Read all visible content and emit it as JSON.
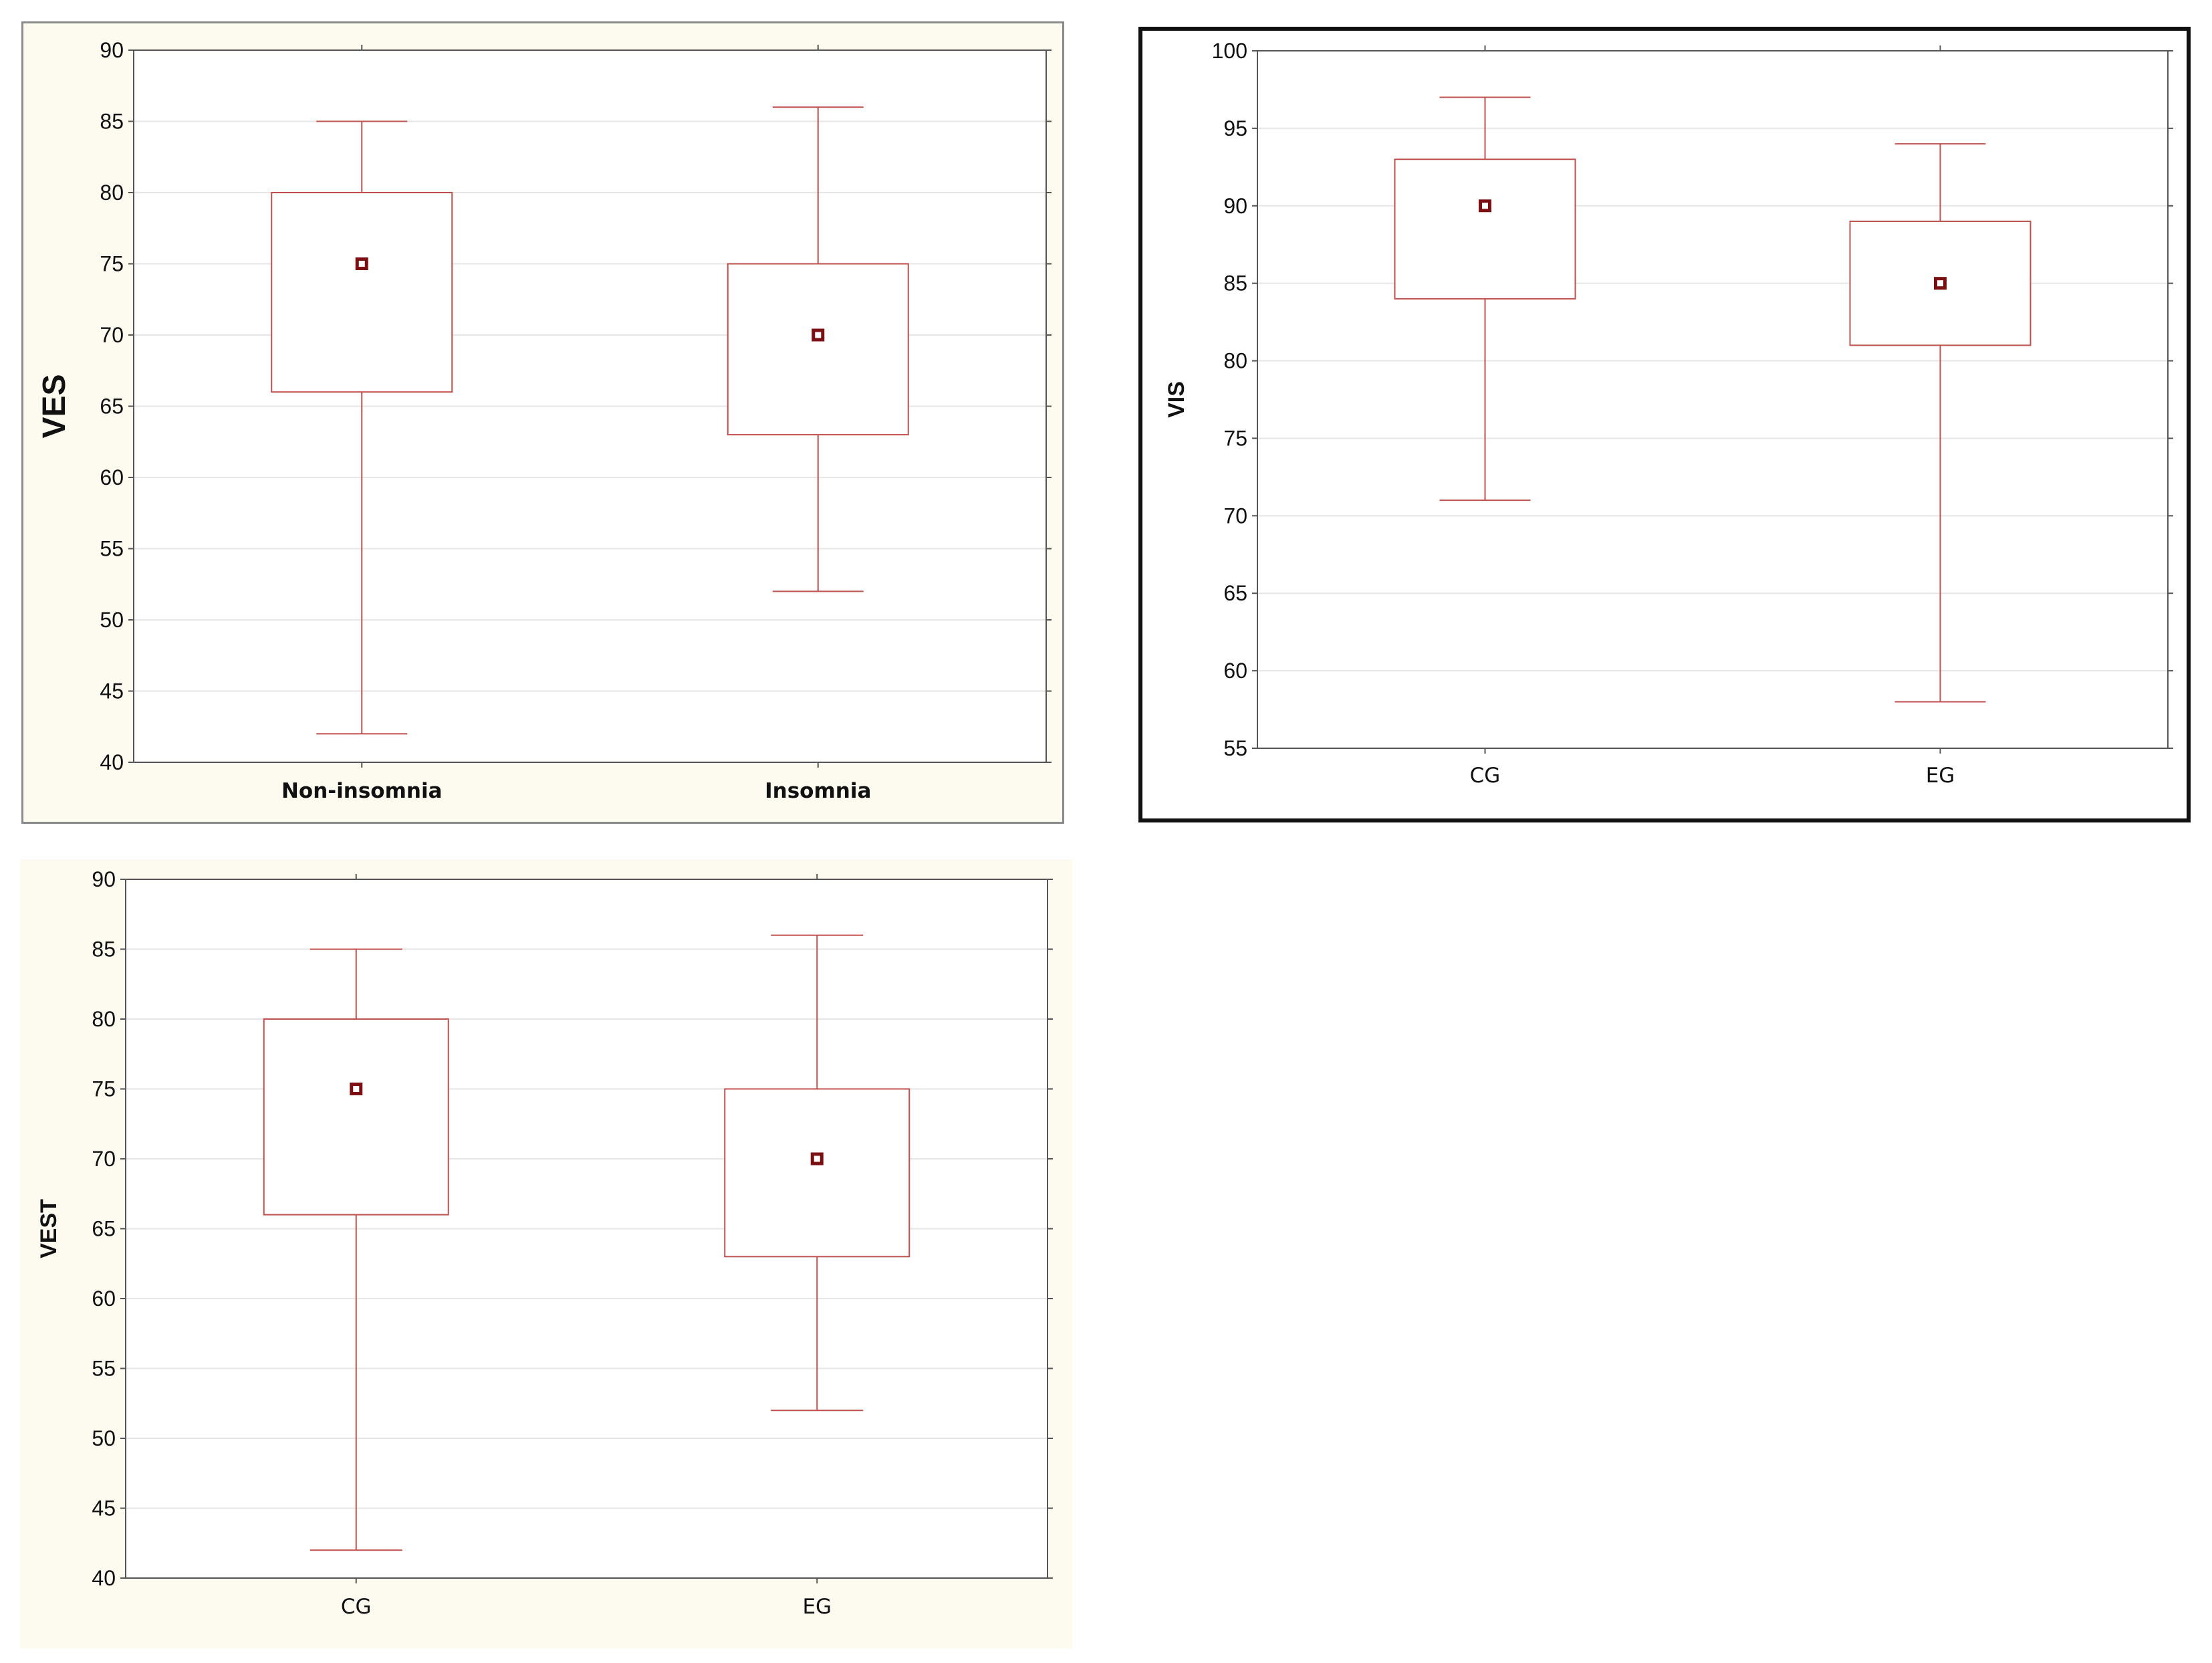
{
  "colors": {
    "box": "#c0504d",
    "median": "#7b0f12",
    "grid": "#e6e6e6",
    "axis": "#555555"
  },
  "chart_data": [
    {
      "type": "boxplot",
      "ylabel": "VES",
      "ylim": [
        40,
        90
      ],
      "yticks": [
        40,
        45,
        50,
        55,
        60,
        65,
        70,
        75,
        80,
        85,
        90
      ],
      "grid": true,
      "categories": [
        "Non-insomnia",
        "Insomnia"
      ],
      "boxes": [
        {
          "category": "Non-insomnia",
          "min": 42,
          "q1": 66,
          "median": 75,
          "q3": 80,
          "max": 85
        },
        {
          "category": "Insomnia",
          "min": 52,
          "q1": 63,
          "median": 70,
          "q3": 75,
          "max": 86
        }
      ]
    },
    {
      "type": "boxplot",
      "ylabel": "VIS",
      "ylim": [
        55,
        100
      ],
      "yticks": [
        55,
        60,
        65,
        70,
        75,
        80,
        85,
        90,
        95,
        100
      ],
      "grid": true,
      "categories": [
        "CG",
        "EG"
      ],
      "boxes": [
        {
          "category": "CG",
          "min": 71,
          "q1": 84,
          "median": 90,
          "q3": 93,
          "max": 97
        },
        {
          "category": "EG",
          "min": 58,
          "q1": 81,
          "median": 85,
          "q3": 89,
          "max": 94
        }
      ]
    },
    {
      "type": "boxplot",
      "ylabel": "VEST",
      "ylim": [
        40,
        90
      ],
      "yticks": [
        40,
        45,
        50,
        55,
        60,
        65,
        70,
        75,
        80,
        85,
        90
      ],
      "grid": true,
      "categories": [
        "CG",
        "EG"
      ],
      "boxes": [
        {
          "category": "CG",
          "min": 42,
          "q1": 66,
          "median": 75,
          "q3": 80,
          "max": 85
        },
        {
          "category": "EG",
          "min": 52,
          "q1": 63,
          "median": 70,
          "q3": 75,
          "max": 86
        }
      ]
    }
  ]
}
